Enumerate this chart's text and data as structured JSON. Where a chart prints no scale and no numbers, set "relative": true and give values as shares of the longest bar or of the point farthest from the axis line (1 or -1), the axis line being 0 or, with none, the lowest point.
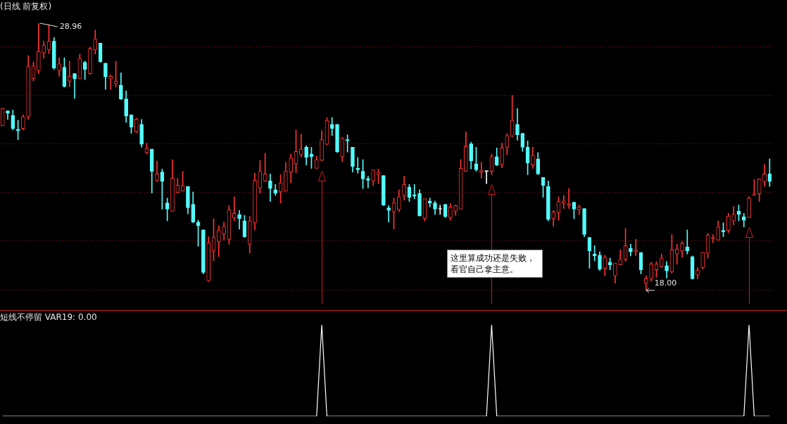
{
  "chart_data": [
    {
      "type": "candlestick",
      "title": "(日线 前复权)",
      "tick_labels": false,
      "grid": "y",
      "yticks": [
        {
          "value": 18,
          "label": null
        },
        {
          "value": 20,
          "label": null
        },
        {
          "value": 22,
          "label": null
        },
        {
          "value": 24,
          "label": null
        },
        {
          "value": 26,
          "label": null
        },
        {
          "value": 28,
          "label": null
        }
      ],
      "categories": [
        null,
        null,
        null,
        null,
        null,
        null,
        null,
        null,
        null,
        null,
        null,
        null,
        null,
        null,
        null,
        null,
        null,
        null,
        null,
        null,
        null,
        null,
        null,
        null,
        null,
        null,
        null,
        null,
        null,
        null,
        null,
        null,
        null,
        null,
        null,
        null,
        null,
        null,
        null,
        null,
        null,
        null,
        null,
        null,
        null,
        null,
        null,
        null,
        null,
        null,
        null,
        null,
        null,
        null,
        null,
        null,
        null,
        null,
        null,
        null,
        null,
        null,
        null,
        null,
        null,
        null,
        null,
        null,
        null,
        null,
        null,
        null,
        null,
        null,
        null,
        null,
        null,
        null,
        null,
        null,
        null,
        null,
        null,
        null,
        null,
        null,
        null,
        null,
        null,
        null,
        null,
        null,
        null,
        null,
        null,
        null,
        null,
        null,
        null,
        null,
        null,
        null,
        null,
        null,
        null,
        null,
        null,
        null,
        null,
        null,
        null,
        null,
        null,
        null,
        null,
        null,
        null,
        null,
        null,
        null,
        null,
        null,
        null,
        null,
        null,
        null,
        null,
        null,
        null,
        null,
        null,
        null,
        null,
        null,
        null,
        null,
        null,
        null,
        null,
        null,
        null,
        null,
        null,
        null,
        null,
        null,
        null,
        null,
        null,
        null
      ],
      "ohlc": [
        [
          24.74,
          25.45,
          24.74,
          25.45
        ],
        [
          25.36,
          25.36,
          25.0,
          25.25
        ],
        [
          25.17,
          25.39,
          24.57,
          24.63
        ],
        [
          24.6,
          24.97,
          24.17,
          24.54
        ],
        [
          24.63,
          25.19,
          24.57,
          25.11
        ],
        [
          25.11,
          27.63,
          25.0,
          27.18
        ],
        [
          26.69,
          27.37,
          26.58,
          27.2
        ],
        [
          27.01,
          28.96,
          26.89,
          27.8
        ],
        [
          27.74,
          28.22,
          27.52,
          28.05
        ],
        [
          27.86,
          28.9,
          27.71,
          28.22
        ],
        [
          28.22,
          28.37,
          27.06,
          27.12
        ],
        [
          27.01,
          27.54,
          26.78,
          27.29
        ],
        [
          27.15,
          27.54,
          26.33,
          26.35
        ],
        [
          26.58,
          27.4,
          26.35,
          26.78
        ],
        [
          26.89,
          26.89,
          25.87,
          26.67
        ],
        [
          26.69,
          27.69,
          26.67,
          27.52
        ],
        [
          27.35,
          27.4,
          26.64,
          27.06
        ],
        [
          26.89,
          27.97,
          26.86,
          27.91
        ],
        [
          27.86,
          28.68,
          27.69,
          28.31
        ],
        [
          28.14,
          28.14,
          27.35,
          27.37
        ],
        [
          27.32,
          27.32,
          26.24,
          26.75
        ],
        [
          26.67,
          26.84,
          26.24,
          26.78
        ],
        [
          26.47,
          27.4,
          26.33,
          26.58
        ],
        [
          26.41,
          26.92,
          25.82,
          25.85
        ],
        [
          25.85,
          26.18,
          24.88,
          25.14
        ],
        [
          25.19,
          25.19,
          24.43,
          24.68
        ],
        [
          24.49,
          25.05,
          24.46,
          25.02
        ],
        [
          24.8,
          25.0,
          23.86,
          23.98
        ],
        [
          23.64,
          24.03,
          23.58,
          23.81
        ],
        [
          23.78,
          23.78,
          21.97,
          22.87
        ],
        [
          22.5,
          23.3,
          22.45,
          22.76
        ],
        [
          22.84,
          22.96,
          21.31,
          22.45
        ],
        [
          21.57,
          21.77,
          20.83,
          21.31
        ],
        [
          21.23,
          23.35,
          21.23,
          22.59
        ],
        [
          21.99,
          22.59,
          21.97,
          22.3
        ],
        [
          22.05,
          22.87,
          22.05,
          22.28
        ],
        [
          22.25,
          22.25,
          21.12,
          21.37
        ],
        [
          21.51,
          22.02,
          20.75,
          20.78
        ],
        [
          20.78,
          20.86,
          19.79,
          20.63
        ],
        [
          20.46,
          20.46,
          18.65,
          18.71
        ],
        [
          18.37,
          20.18,
          18.34,
          19.93
        ],
        [
          19.59,
          20.92,
          19.19,
          20.15
        ],
        [
          19.98,
          20.63,
          19.36,
          20.44
        ],
        [
          20.3,
          20.78,
          20.04,
          20.61
        ],
        [
          20.07,
          21.46,
          19.87,
          21.29
        ],
        [
          20.95,
          21.82,
          20.83,
          21.14
        ],
        [
          21.09,
          21.26,
          20.49,
          20.92
        ],
        [
          20.83,
          21.06,
          20.15,
          20.18
        ],
        [
          19.87,
          21.03,
          19.5,
          20.83
        ],
        [
          20.75,
          22.79,
          20.46,
          22.5
        ],
        [
          22.19,
          23.32,
          21.97,
          22.87
        ],
        [
          22.47,
          23.61,
          22.45,
          22.76
        ],
        [
          22.47,
          22.76,
          21.63,
          22.16
        ],
        [
          22.11,
          22.33,
          21.88,
          21.97
        ],
        [
          22.02,
          22.73,
          21.57,
          22.39
        ],
        [
          22.05,
          23.24,
          22.05,
          22.87
        ],
        [
          22.84,
          23.58,
          22.39,
          23.41
        ],
        [
          23.18,
          24.57,
          22.81,
          23.69
        ],
        [
          23.55,
          24.4,
          23.47,
          23.78
        ],
        [
          23.86,
          23.92,
          23.13,
          23.44
        ],
        [
          23.58,
          23.86,
          22.99,
          23.47
        ],
        [
          22.99,
          23.49,
          22.99,
          23.35
        ],
        [
          23.32,
          24.54,
          23.3,
          24.17
        ],
        [
          23.98,
          25.08,
          23.95,
          24.97
        ],
        [
          24.8,
          25.08,
          24.34,
          24.63
        ],
        [
          24.8,
          24.8,
          23.64,
          23.66
        ],
        [
          23.47,
          24.26,
          23.27,
          24.23
        ],
        [
          24.17,
          24.37,
          23.66,
          24.12
        ],
        [
          23.86,
          23.86,
          22.84,
          23.07
        ],
        [
          22.99,
          23.44,
          22.79,
          22.93
        ],
        [
          22.87,
          23.35,
          22.16,
          22.56
        ],
        [
          22.56,
          22.67,
          22.19,
          22.5
        ],
        [
          22.47,
          22.93,
          22.28,
          22.93
        ],
        [
          22.73,
          22.96,
          22.36,
          22.81
        ],
        [
          22.7,
          22.7,
          21.46,
          21.48
        ],
        [
          21.37,
          21.46,
          20.78,
          21.26
        ],
        [
          21.2,
          21.77,
          20.49,
          21.57
        ],
        [
          21.29,
          22.11,
          21.2,
          21.82
        ],
        [
          21.88,
          22.67,
          21.68,
          22.33
        ],
        [
          22.22,
          22.33,
          21.63,
          21.8
        ],
        [
          21.91,
          22.33,
          21.74,
          21.85
        ],
        [
          21.97,
          22.11,
          21.03,
          21.03
        ],
        [
          20.92,
          21.74,
          20.83,
          21.74
        ],
        [
          21.65,
          21.77,
          21.4,
          21.57
        ],
        [
          21.57,
          21.65,
          21.09,
          21.31
        ],
        [
          21.31,
          21.48,
          21.09,
          21.31
        ],
        [
          21.51,
          21.51,
          20.97,
          21.0
        ],
        [
          20.97,
          21.54,
          20.86,
          21.4
        ],
        [
          21.23,
          21.48,
          21.06,
          21.46
        ],
        [
          21.31,
          23.35,
          21.31,
          22.99
        ],
        [
          22.87,
          24.49,
          22.87,
          23.89
        ],
        [
          24.0,
          24.06,
          22.96,
          23.3
        ],
        [
          23.18,
          23.86,
          22.87,
          22.93
        ],
        [
          22.84,
          23.24,
          22.59,
          22.9
        ],
        [
          22.87,
          22.87,
          22.36,
          22.87
        ],
        [
          22.87,
          23.58,
          22.73,
          23.47
        ],
        [
          23.47,
          23.83,
          23.1,
          23.13
        ],
        [
          23.15,
          24.03,
          23.01,
          23.83
        ],
        [
          23.86,
          24.43,
          23.55,
          24.34
        ],
        [
          24.32,
          25.99,
          24.29,
          24.97
        ],
        [
          24.8,
          25.45,
          24.15,
          24.37
        ],
        [
          24.43,
          24.43,
          23.69,
          23.86
        ],
        [
          23.86,
          24.12,
          22.73,
          23.21
        ],
        [
          23.13,
          23.86,
          22.99,
          23.52
        ],
        [
          23.38,
          23.64,
          22.73,
          22.76
        ],
        [
          22.62,
          22.62,
          21.8,
          22.28
        ],
        [
          22.25,
          22.47,
          20.83,
          20.89
        ],
        [
          20.92,
          21.26,
          20.61,
          21.2
        ],
        [
          21.17,
          21.82,
          20.86,
          21.63
        ],
        [
          21.57,
          21.88,
          21.34,
          21.65
        ],
        [
          21.48,
          22.16,
          21.34,
          21.54
        ],
        [
          21.6,
          21.6,
          20.92,
          21.31
        ],
        [
          21.29,
          21.48,
          21.09,
          21.4
        ],
        [
          21.34,
          21.34,
          20.18,
          20.27
        ],
        [
          20.15,
          20.15,
          18.88,
          19.59
        ],
        [
          19.47,
          19.81,
          19.19,
          19.39
        ],
        [
          19.42,
          19.56,
          18.79,
          18.85
        ],
        [
          18.88,
          19.42,
          18.57,
          19.33
        ],
        [
          19.13,
          19.3,
          18.82,
          19.02
        ],
        [
          18.57,
          19.08,
          18.26,
          19.08
        ],
        [
          19.02,
          19.64,
          19.02,
          19.25
        ],
        [
          19.25,
          20.52,
          19.16,
          19.81
        ],
        [
          19.7,
          19.87,
          19.39,
          19.56
        ],
        [
          19.56,
          20.07,
          19.39,
          19.62
        ],
        [
          19.53,
          19.53,
          18.65,
          18.82
        ],
        [
          18.26,
          18.57,
          18.0,
          18.45
        ],
        [
          18.45,
          19.13,
          18.34,
          19.05
        ],
        [
          18.82,
          19.16,
          18.51,
          19.05
        ],
        [
          18.96,
          19.47,
          18.91,
          19.3
        ],
        [
          18.99,
          19.16,
          18.48,
          18.77
        ],
        [
          18.74,
          20.27,
          18.68,
          19.64
        ],
        [
          19.47,
          19.87,
          19.05,
          19.67
        ],
        [
          19.59,
          19.98,
          19.33,
          19.9
        ],
        [
          19.76,
          20.46,
          19.47,
          19.59
        ],
        [
          19.36,
          19.39,
          18.43,
          18.45
        ],
        [
          18.6,
          18.91,
          18.45,
          18.79
        ],
        [
          18.91,
          19.53,
          18.85,
          19.53
        ],
        [
          19.5,
          20.32,
          19.3,
          20.24
        ],
        [
          20.1,
          20.27,
          19.93,
          20.15
        ],
        [
          20.04,
          20.83,
          20.04,
          20.58
        ],
        [
          20.44,
          20.75,
          20.18,
          20.38
        ],
        [
          20.44,
          21.14,
          20.35,
          21.03
        ],
        [
          20.83,
          21.43,
          20.66,
          21.09
        ],
        [
          21.23,
          21.48,
          20.83,
          21.09
        ],
        [
          21.0,
          21.14,
          20.58,
          20.86
        ],
        [
          20.97,
          21.82,
          20.97,
          21.77
        ],
        [
          21.88,
          22.53,
          21.88,
          21.94
        ],
        [
          21.94,
          22.56,
          21.63,
          22.56
        ],
        [
          22.45,
          23.15,
          22.25,
          22.76
        ],
        [
          22.76,
          23.38,
          22.25,
          22.45
        ]
      ],
      "colors": [
        "#ff3232",
        "#54fcfc",
        "#54fcfc",
        "#54fcfc",
        "#ff3232",
        "#ff3232",
        "#ff3232",
        "#ff3232",
        "#ff3232",
        "#ff3232",
        "#54fcfc",
        "#ff3232",
        "#54fcfc",
        "#ff3232",
        "#54fcfc",
        "#ff3232",
        "#54fcfc",
        "#ff3232",
        "#ff3232",
        "#54fcfc",
        "#54fcfc",
        "#ff3232",
        "#ff3232",
        "#54fcfc",
        "#54fcfc",
        "#54fcfc",
        "#ff3232",
        "#54fcfc",
        "#ff3232",
        "#54fcfc",
        "#ff3232",
        "#54fcfc",
        "#54fcfc",
        "#ff3232",
        "#ff3232",
        "#ff3232",
        "#54fcfc",
        "#54fcfc",
        "#54fcfc",
        "#54fcfc",
        "#ff3232",
        "#ff3232",
        "#ff3232",
        "#ff3232",
        "#ff3232",
        "#ff3232",
        "#54fcfc",
        "#54fcfc",
        "#ff3232",
        "#ff3232",
        "#ff3232",
        "#ff3232",
        "#54fcfc",
        "#54fcfc",
        "#ff3232",
        "#ff3232",
        "#ff3232",
        "#ff3232",
        "#ff3232",
        "#54fcfc",
        "#54fcfc",
        "#ff3232",
        "#ff3232",
        "#ff3232",
        "#54fcfc",
        "#54fcfc",
        "#ff3232",
        "#54fcfc",
        "#54fcfc",
        "#54fcfc",
        "#54fcfc",
        "#54fcfc",
        "#ff3232",
        "#ff3232",
        "#54fcfc",
        "#54fcfc",
        "#ff3232",
        "#ff3232",
        "#ff3232",
        "#54fcfc",
        "#54fcfc",
        "#54fcfc",
        "#ff3232",
        "#54fcfc",
        "#54fcfc",
        "#ffffff",
        "#54fcfc",
        "#ff3232",
        "#ff3232",
        "#ff3232",
        "#ff3232",
        "#54fcfc",
        "#54fcfc",
        "#ff3232",
        "#ffffff",
        "#ff3232",
        "#54fcfc",
        "#ff3232",
        "#ff3232",
        "#ff3232",
        "#54fcfc",
        "#54fcfc",
        "#54fcfc",
        "#ff3232",
        "#54fcfc",
        "#54fcfc",
        "#54fcfc",
        "#ff3232",
        "#ff3232",
        "#ff3232",
        "#ff3232",
        "#54fcfc",
        "#ff3232",
        "#54fcfc",
        "#54fcfc",
        "#54fcfc",
        "#54fcfc",
        "#ff3232",
        "#54fcfc",
        "#ff3232",
        "#ff3232",
        "#ff3232",
        "#54fcfc",
        "#ff3232",
        "#54fcfc",
        "#ff3232",
        "#ff3232",
        "#ff3232",
        "#ff3232",
        "#54fcfc",
        "#ff3232",
        "#ff3232",
        "#ff3232",
        "#54fcfc",
        "#54fcfc",
        "#ff3232",
        "#ff3232",
        "#ff3232",
        "#ff3232",
        "#ff3232",
        "#54fcfc",
        "#ff3232",
        "#ff3232",
        "#54fcfc",
        "#54fcfc",
        "#ff3232",
        "#ff3232",
        "#ff3232",
        "#ff3232",
        "#54fcfc"
      ],
      "annotations": [
        "28.96",
        "18.00",
        "这里算成功还是失败，看官自己拿主意。"
      ]
    },
    {
      "type": "line",
      "title": "短线不停留 VAR19: 0.00",
      "relative": true,
      "tick_labels": false,
      "color": "#ffffff",
      "marker": "none",
      "categories": [
        null,
        null,
        null,
        null,
        null,
        null,
        null,
        null,
        null,
        null,
        null,
        null,
        null,
        null,
        null,
        null,
        null,
        null,
        null,
        null,
        null,
        null,
        null,
        null,
        null,
        null,
        null,
        null,
        null,
        null,
        null,
        null,
        null,
        null,
        null,
        null,
        null,
        null,
        null,
        null,
        null,
        null,
        null,
        null,
        null,
        null,
        null,
        null,
        null,
        null,
        null,
        null,
        null,
        null,
        null,
        null,
        null,
        null,
        null,
        null,
        null,
        null,
        null,
        null,
        null,
        null,
        null,
        null,
        null,
        null,
        null,
        null,
        null,
        null,
        null,
        null,
        null,
        null,
        null,
        null,
        null,
        null,
        null,
        null,
        null,
        null,
        null,
        null,
        null,
        null,
        null,
        null,
        null,
        null,
        null,
        null,
        null,
        null,
        null,
        null,
        null,
        null,
        null,
        null,
        null,
        null,
        null,
        null,
        null,
        null,
        null,
        null,
        null,
        null,
        null,
        null,
        null,
        null,
        null,
        null,
        null,
        null,
        null,
        null,
        null,
        null,
        null,
        null,
        null,
        null,
        null,
        null,
        null,
        null,
        null,
        null,
        null,
        null,
        null,
        null,
        null,
        null,
        null,
        null,
        null,
        null,
        null,
        null,
        null,
        null
      ],
      "values": [
        0,
        0,
        0,
        0,
        0,
        0,
        0,
        0,
        0,
        0,
        0,
        0,
        0,
        0,
        0,
        0,
        0,
        0,
        0,
        0,
        0,
        0,
        0,
        0,
        0,
        0,
        0,
        0,
        0,
        0,
        0,
        0,
        0,
        0,
        0,
        0,
        0,
        0,
        0,
        0,
        0,
        0,
        0,
        0,
        0,
        0,
        0,
        0,
        0,
        0,
        0,
        0,
        0,
        0,
        0,
        0,
        0,
        0,
        0,
        0,
        0,
        0,
        1,
        0,
        0,
        0,
        0,
        0,
        0,
        0,
        0,
        0,
        0,
        0,
        0,
        0,
        0,
        0,
        0,
        0,
        0,
        0,
        0,
        0,
        0,
        0,
        0,
        0,
        0,
        0,
        0,
        0,
        0,
        0,
        0,
        1,
        0,
        0,
        0,
        0,
        0,
        0,
        0,
        0,
        0,
        0,
        0,
        0,
        0,
        0,
        0,
        0,
        0,
        0,
        0,
        0,
        0,
        0,
        0,
        0,
        0,
        0,
        0,
        0,
        0,
        0,
        0,
        0,
        0,
        0,
        0,
        0,
        0,
        0,
        0,
        0,
        0,
        0,
        0,
        0,
        0,
        0,
        0,
        0,
        0,
        1,
        0,
        0,
        0,
        0
      ]
    }
  ]
}
